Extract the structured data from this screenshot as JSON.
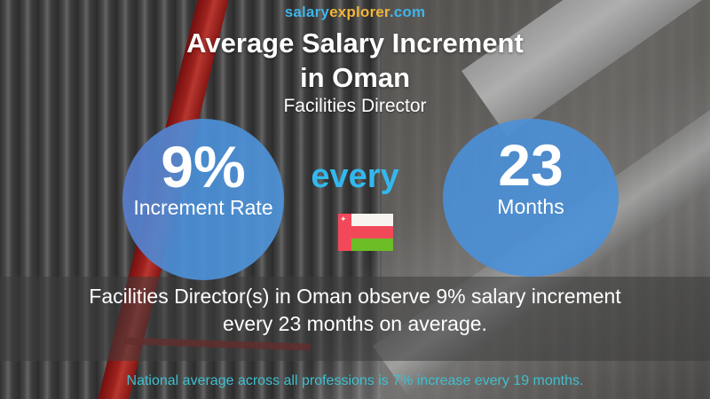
{
  "brand": {
    "part1": "salary",
    "part2": "explorer",
    "part3": ".com",
    "colors": {
      "salary": "#3fb4e8",
      "explorer": "#f2b43a",
      "com": "#3fb4e8"
    }
  },
  "header": {
    "title_line1": "Average Salary Increment",
    "title_line2": "in Oman",
    "subtitle": "Facilities Director"
  },
  "increment": {
    "rate_value": "9%",
    "rate_label": "Increment Rate",
    "connector": "every",
    "period_value": "23",
    "period_label": "Months"
  },
  "flag": {
    "country": "Oman",
    "icon": "oman-flag-icon",
    "colors": {
      "red": "#f2495a",
      "white": "#f7f4ef",
      "green": "#6cbd26"
    }
  },
  "summary": {
    "line1": "Facilities Director(s) in Oman observe 9% salary increment",
    "line2": "every 23 months on average."
  },
  "national": {
    "text": "National average across all professions is 7% increase every 19 months."
  },
  "colors": {
    "circle_blue": "#4a90d8",
    "every_text": "#33b8ee",
    "national_text": "#3fbfcf"
  }
}
